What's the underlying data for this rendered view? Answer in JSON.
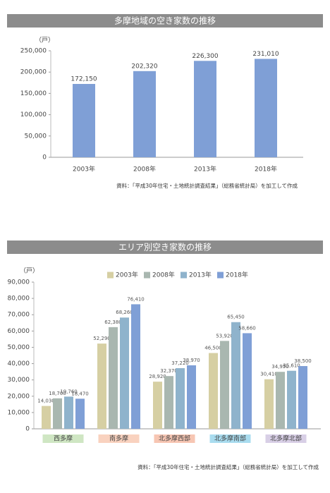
{
  "chart_data": [
    {
      "type": "bar",
      "title": "多摩地域の空き家数の推移",
      "unit_label": "（戸）",
      "categories": [
        "2003年",
        "2008年",
        "2013年",
        "2018年"
      ],
      "values": [
        172150,
        202320,
        226300,
        231010
      ],
      "value_labels": [
        "172,150",
        "202,320",
        "226,300",
        "231,010"
      ],
      "color": "#7f9fd6",
      "ylim": [
        0,
        250000
      ],
      "yticks": [
        {
          "value": 0,
          "label": "0"
        },
        {
          "value": 50000,
          "label": "50,000"
        },
        {
          "value": 100000,
          "label": "100,000"
        },
        {
          "value": 150000,
          "label": "150,000"
        },
        {
          "value": 200000,
          "label": "200,000"
        },
        {
          "value": 250000,
          "label": "250,000"
        }
      ],
      "source": "資料：「平成30年住宅・土地統計調査結果」（総務省統計局）を加工して作成"
    },
    {
      "type": "bar",
      "title": "エリア別空き家数の推移",
      "unit_label": "（戸）",
      "categories": [
        "西多摩",
        "南多摩",
        "北多摩西部",
        "北多摩南部",
        "北多摩北部"
      ],
      "category_colors": [
        "#cfe6c3",
        "#f9d2bf",
        "#f7c6b3",
        "#a9dcef",
        "#d8cfe6"
      ],
      "series": [
        {
          "name": "2003年",
          "color": "#d6cfa3",
          "values": [
            14030,
            52290,
            28920,
            46500,
            30410
          ],
          "value_labels": [
            "14,030",
            "52,290",
            "28,920",
            "46,500",
            "30,410"
          ]
        },
        {
          "name": "2008年",
          "color": "#a9b7b0",
          "values": [
            18700,
            62380,
            32370,
            53920,
            34950
          ],
          "value_labels": [
            "18,700",
            "62,380",
            "32,370",
            "53,920",
            "34,950"
          ]
        },
        {
          "name": "2013年",
          "color": "#8fb3cc",
          "values": [
            19760,
            68260,
            37220,
            65450,
            35610
          ],
          "value_labels": [
            "19,760",
            "68,260",
            "37,220",
            "65,450",
            "35,610"
          ]
        },
        {
          "name": "2018年",
          "color": "#7f9fd6",
          "values": [
            18470,
            76410,
            38970,
            58660,
            38500
          ],
          "value_labels": [
            "18,470",
            "76,410",
            "38,970",
            "58,660",
            "38,500"
          ]
        }
      ],
      "ylim": [
        0,
        90000
      ],
      "yticks": [
        {
          "value": 0,
          "label": "0"
        },
        {
          "value": 10000,
          "label": "10,000"
        },
        {
          "value": 20000,
          "label": "20,000"
        },
        {
          "value": 30000,
          "label": "30,000"
        },
        {
          "value": 40000,
          "label": "40,000"
        },
        {
          "value": 50000,
          "label": "50,000"
        },
        {
          "value": 60000,
          "label": "60,000"
        },
        {
          "value": 70000,
          "label": "70,000"
        },
        {
          "value": 80000,
          "label": "80,000"
        },
        {
          "value": 90000,
          "label": "90,000"
        }
      ],
      "source": "資料：「平成30年住宅・土地統計調査結果」（総務省統計局）を加工して作成"
    }
  ]
}
